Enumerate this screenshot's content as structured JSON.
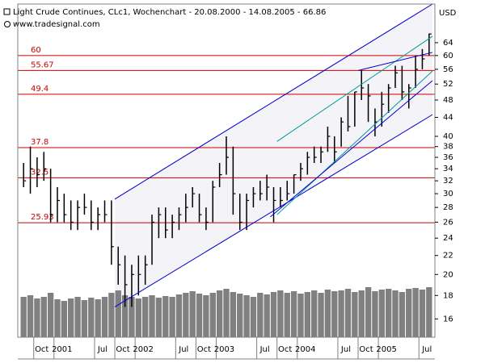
{
  "chart_data": {
    "type": "hlc",
    "title": "Light Crude Continues, CLc1, Wochenchart - 20.08.2000 - 14.08.2005 - 66.86",
    "subtitle": "www.tradesignal.com",
    "y_unit": "USD",
    "log_scale": true,
    "x": [
      "2000-08",
      "2000-09",
      "2000-10",
      "2000-11",
      "2000-12",
      "2001-01",
      "2001-02",
      "2001-03",
      "2001-04",
      "2001-05",
      "2001-06",
      "2001-07",
      "2001-08",
      "2001-09",
      "2001-10",
      "2001-11",
      "2001-12",
      "2002-01",
      "2002-02",
      "2002-03",
      "2002-04",
      "2002-05",
      "2002-06",
      "2002-07",
      "2002-08",
      "2002-09",
      "2002-10",
      "2002-11",
      "2002-12",
      "2003-01",
      "2003-02",
      "2003-03",
      "2003-04",
      "2003-05",
      "2003-06",
      "2003-07",
      "2003-08",
      "2003-09",
      "2003-10",
      "2003-11",
      "2003-12",
      "2004-01",
      "2004-02",
      "2004-03",
      "2004-04",
      "2004-05",
      "2004-06",
      "2004-07",
      "2004-08",
      "2004-09",
      "2004-10",
      "2004-11",
      "2004-12",
      "2005-01",
      "2005-02",
      "2005-03",
      "2005-04",
      "2005-05",
      "2005-06",
      "2005-07",
      "2005-08"
    ],
    "high": [
      35,
      38,
      36,
      37,
      34,
      31,
      30,
      29,
      29,
      30,
      29,
      28,
      29,
      29,
      23,
      22,
      21,
      22,
      22,
      27,
      28,
      28,
      27,
      28,
      30,
      31,
      30,
      28,
      32,
      35,
      40,
      38,
      30,
      30,
      31,
      32,
      33,
      31,
      31,
      32,
      33,
      35,
      37,
      38,
      38,
      42,
      40,
      44,
      49,
      50,
      55.67,
      52,
      46,
      50,
      52,
      57,
      57,
      52,
      60,
      62,
      67
    ],
    "low": [
      31,
      30,
      31,
      32,
      26,
      26,
      26,
      25,
      25,
      27,
      25,
      25,
      26,
      21,
      19,
      17,
      17,
      18,
      19,
      21,
      24,
      24,
      24,
      25,
      26,
      28,
      26,
      25,
      26,
      31,
      33,
      27,
      25,
      25,
      28,
      29,
      29,
      26,
      28,
      29,
      30,
      32,
      33,
      35,
      35,
      37,
      35,
      38,
      41,
      42,
      48,
      43,
      40,
      42,
      45,
      51,
      48,
      46,
      51,
      56,
      60
    ],
    "close": [
      32,
      34,
      33,
      34,
      27,
      29,
      27,
      26,
      28,
      28,
      26,
      27,
      27,
      23,
      21,
      19,
      20,
      20,
      21,
      26,
      27,
      25,
      26,
      27,
      28,
      30,
      27,
      26,
      31,
      33,
      36,
      30,
      26,
      29,
      30,
      30,
      31,
      29,
      29,
      30,
      33,
      34,
      36,
      36,
      37,
      40,
      37,
      43,
      42,
      50,
      51,
      49,
      43,
      47,
      51,
      55,
      50,
      51,
      56,
      59,
      66.86
    ],
    "volume": [
      50,
      52,
      48,
      50,
      55,
      47,
      45,
      48,
      50,
      46,
      49,
      47,
      50,
      55,
      58,
      52,
      50,
      48,
      50,
      52,
      49,
      51,
      50,
      53,
      55,
      57,
      54,
      52,
      55,
      58,
      60,
      56,
      54,
      52,
      50,
      55,
      53,
      56,
      58,
      55,
      57,
      54,
      56,
      58,
      55,
      59,
      57,
      58,
      60,
      56,
      58,
      62,
      57,
      59,
      60,
      58,
      56,
      60,
      61,
      59,
      62
    ],
    "bar_color": "#000000",
    "volume_color": "#808080",
    "vlim": [
      0,
      100
    ],
    "xlim": [
      "2000-08",
      "2005-09"
    ],
    "xticks": [
      {
        "value": "2000-10",
        "label": "Oct"
      },
      {
        "value": "2001-01",
        "label": "2001"
      },
      {
        "value": "2001-07",
        "label": "Jul"
      },
      {
        "value": "2001-10",
        "label": "Oct"
      },
      {
        "value": "2002-01",
        "label": "2002"
      },
      {
        "value": "2002-07",
        "label": "Jul"
      },
      {
        "value": "2002-10",
        "label": "Oct"
      },
      {
        "value": "2003-01",
        "label": "2003"
      },
      {
        "value": "2003-07",
        "label": "Jul"
      },
      {
        "value": "2003-10",
        "label": "Oct"
      },
      {
        "value": "2004-01",
        "label": "2004"
      },
      {
        "value": "2004-07",
        "label": "Jul"
      },
      {
        "value": "2004-10",
        "label": "Oct"
      },
      {
        "value": "2005-01",
        "label": "2005"
      },
      {
        "value": "2005-07",
        "label": "Jul"
      }
    ],
    "ylim": [
      14.6,
      77.7
    ],
    "yticks": [
      64,
      60,
      56,
      52,
      48,
      44,
      40,
      38,
      36,
      34,
      32,
      30,
      28,
      26,
      24,
      22,
      20,
      18,
      16
    ],
    "levels": [
      60,
      55.67,
      49.4,
      37.8,
      32.5,
      25.93
    ],
    "level_color": "#cc0000",
    "trend_lines": [
      {
        "from": {
          "x": "2001-10",
          "y": 29.2
        },
        "to": {
          "x": "2005-09",
          "y": 77.7
        },
        "color": "#0000cc"
      },
      {
        "from": {
          "x": "2001-10",
          "y": 17.0
        },
        "to": {
          "x": "2005-09",
          "y": 44.6
        },
        "color": "#0000cc"
      },
      {
        "from": {
          "x": "2003-10",
          "y": 39.0
        },
        "to": {
          "x": "2005-09",
          "y": 66.1
        },
        "color": "#009999"
      },
      {
        "from": {
          "x": "2003-10",
          "y": 27.0
        },
        "to": {
          "x": "2005-09",
          "y": 55.5
        },
        "color": "#009999"
      },
      {
        "from": {
          "x": "2003-09",
          "y": 26.7
        },
        "to": {
          "x": "2005-09",
          "y": 52.9
        },
        "color": "#0000cc"
      },
      {
        "from": {
          "x": "2004-10",
          "y": 55.67
        },
        "to": {
          "x": "2005-09",
          "y": 60.96
        },
        "color": "#0000cc"
      }
    ],
    "channel_fill": "#f3f3f8"
  }
}
